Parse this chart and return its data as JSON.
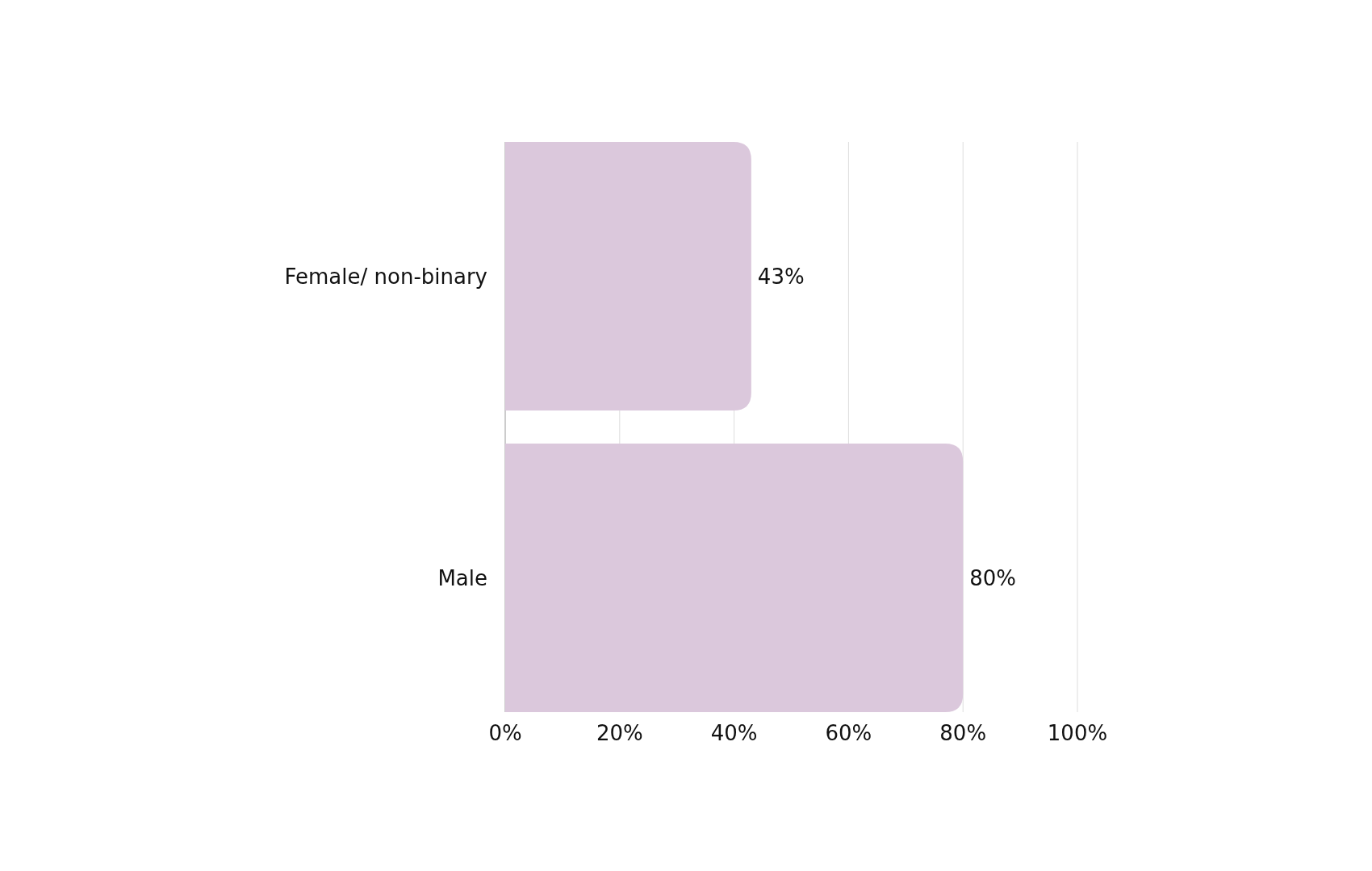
{
  "chart_data": {
    "type": "bar",
    "orientation": "horizontal",
    "categories": [
      "Female/ non-binary",
      "Male"
    ],
    "values": [
      43,
      80
    ],
    "color": "#dbc8dc",
    "value_labels": [
      "43%",
      "80%"
    ],
    "xlim": [
      0,
      100
    ],
    "xticks": [
      {
        "value": 0,
        "label": "0%"
      },
      {
        "value": 20,
        "label": "20%"
      },
      {
        "value": 40,
        "label": "40%"
      },
      {
        "value": 60,
        "label": "60%"
      },
      {
        "value": 80,
        "label": "80%"
      },
      {
        "value": 100,
        "label": "100%"
      }
    ],
    "grid": "x"
  }
}
